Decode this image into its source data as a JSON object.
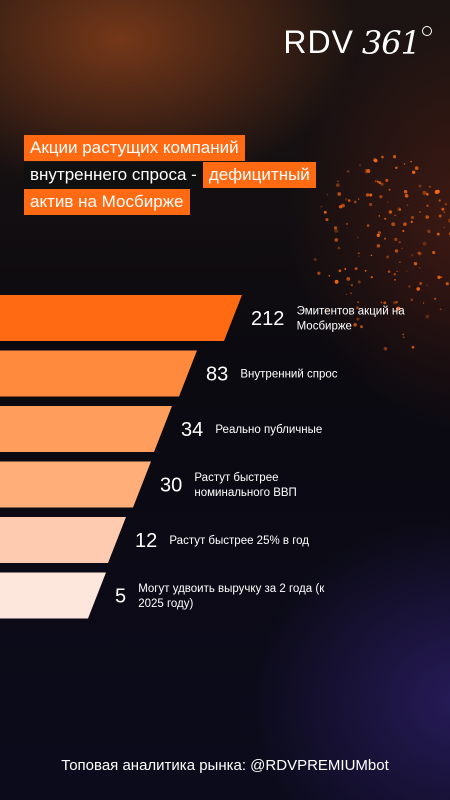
{
  "logo": {
    "text": "RDV",
    "number": "361"
  },
  "title": {
    "line1": "Акции растущих компаний",
    "line2_a": "внутреннего спроса - ",
    "line2_b": "дефицитный",
    "line3": "актив на Мосбирже"
  },
  "colors": {
    "accent": "#ff6a13",
    "bars": [
      "#ff6a13",
      "#ff8a3d",
      "#ff9d5c",
      "#ffae7a",
      "#ffcbb0",
      "#fde6dc"
    ]
  },
  "chart_data": {
    "type": "bar",
    "orientation": "horizontal",
    "categories": [
      "Эмитентов акций на Мосбирже",
      "Внутренний спрос",
      "Реально публичные",
      "Растут быстрее номинального ВВП",
      "Растут быстрее 25% в год",
      "Могут удвоить выручку за 2 года (к 2025 году)"
    ],
    "values": [
      212,
      83,
      34,
      30,
      12,
      5
    ],
    "value_labels": [
      "212",
      "83",
      "34",
      "30",
      "12",
      "5"
    ],
    "label_lines": [
      [
        "Эмитентов акций на",
        "Мосбирже"
      ],
      [
        "Внутренний спрос"
      ],
      [
        "Реально публичные"
      ],
      [
        "Растут быстрее",
        "номинального ВВП"
      ],
      [
        "Растут быстрее 25% в год"
      ],
      [
        "Могут удвоить выручку за 2 года (к",
        "2025 году)"
      ]
    ]
  },
  "footer": {
    "text": "Топовая аналитика рынка: @RDVPREMIUMbot"
  }
}
